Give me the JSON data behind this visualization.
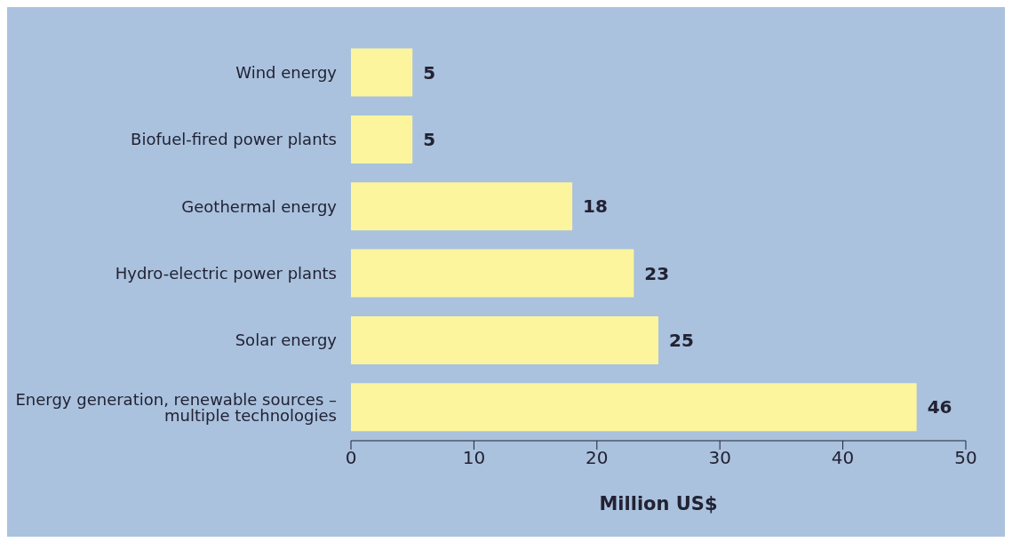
{
  "chart_data": {
    "type": "bar",
    "orientation": "horizontal",
    "xlabel": "Million US$",
    "categories": [
      "Wind energy",
      "Biofuel-fired power plants",
      "Geothermal energy",
      "Hydro-electric power plants",
      "Solar energy",
      "Energy generation, renewable sources – multiple technologies"
    ],
    "values": [
      5,
      5,
      18,
      23,
      25,
      46
    ],
    "color": "#fdf59d",
    "xlim": [
      0,
      50
    ],
    "xticks": [
      0,
      10,
      20,
      30,
      40,
      50
    ],
    "data_labels": true,
    "grid": false,
    "legend": false
  }
}
